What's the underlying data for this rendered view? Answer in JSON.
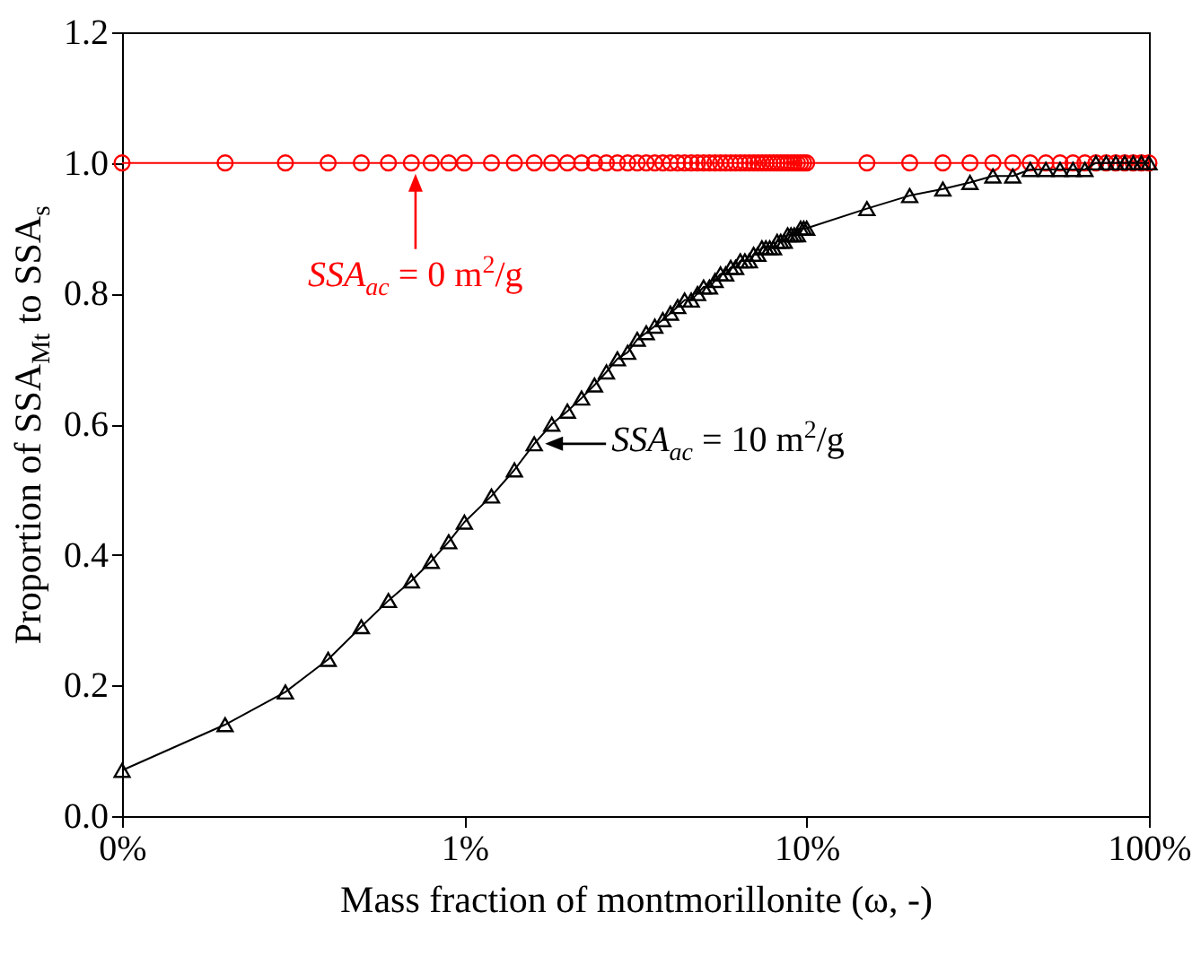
{
  "chart_data": {
    "type": "line",
    "xlabel": "Mass fraction of montmorillonite (ω, -)",
    "ylabel": "Proportion of SSA$_{Mt}$ to SSA$_{s}$",
    "log": "x",
    "xlim": [
      0.1,
      100
    ],
    "xticks": [
      {
        "value": 0.1,
        "label": "0%"
      },
      {
        "value": 1,
        "label": "1%"
      },
      {
        "value": 10,
        "label": "10%"
      },
      {
        "value": 100,
        "label": "100%"
      }
    ],
    "ylim": [
      0,
      1.2
    ],
    "yticks": [
      {
        "value": 0,
        "label": "0.0"
      },
      0.2,
      0.4,
      0.6,
      0.8,
      {
        "value": 1,
        "label": "1.0"
      },
      1.2
    ],
    "grid": false,
    "line_style": "solid",
    "x": [
      0.1,
      0.2,
      0.3,
      0.4,
      0.5,
      0.6,
      0.7,
      0.8,
      0.9,
      1,
      1.2,
      1.4,
      1.6,
      1.8,
      2,
      2.2,
      2.4,
      2.6,
      2.8,
      3,
      3.2,
      3.4,
      3.6,
      3.8,
      4,
      4.2,
      4.4,
      4.6,
      4.8,
      5,
      5.2,
      5.4,
      5.6,
      5.8,
      6,
      6.2,
      6.4,
      6.6,
      6.8,
      7,
      7.2,
      7.4,
      7.6,
      7.8,
      8,
      8.2,
      8.4,
      8.6,
      8.8,
      9,
      9.2,
      9.4,
      9.6,
      9.8,
      10,
      15,
      20,
      25,
      30,
      35,
      40,
      45,
      50,
      55,
      60,
      65,
      70,
      75,
      80,
      85,
      90,
      95,
      100
    ],
    "series": [
      {
        "color": "#ff0000",
        "marker": "circle",
        "values": [
          1,
          1,
          1,
          1,
          1,
          1,
          1,
          1,
          1,
          1,
          1,
          1,
          1,
          1,
          1,
          1,
          1,
          1,
          1,
          1,
          1,
          1,
          1,
          1,
          1,
          1,
          1,
          1,
          1,
          1,
          1,
          1,
          1,
          1,
          1,
          1,
          1,
          1,
          1,
          1,
          1,
          1,
          1,
          1,
          1,
          1,
          1,
          1,
          1,
          1,
          1,
          1,
          1,
          1,
          1,
          1,
          1,
          1,
          1,
          1,
          1,
          1,
          1,
          1,
          1,
          1,
          1,
          1,
          1,
          1,
          1,
          1,
          1
        ]
      },
      {
        "color": "#000000",
        "marker": "triangle",
        "values": [
          0.07,
          0.14,
          0.19,
          0.24,
          0.29,
          0.33,
          0.36,
          0.39,
          0.42,
          0.45,
          0.49,
          0.53,
          0.57,
          0.6,
          0.62,
          0.64,
          0.66,
          0.68,
          0.7,
          0.71,
          0.73,
          0.74,
          0.75,
          0.76,
          0.77,
          0.78,
          0.79,
          0.79,
          0.8,
          0.81,
          0.81,
          0.82,
          0.83,
          0.83,
          0.84,
          0.84,
          0.85,
          0.85,
          0.85,
          0.86,
          0.86,
          0.87,
          0.87,
          0.87,
          0.87,
          0.88,
          0.88,
          0.88,
          0.89,
          0.89,
          0.89,
          0.89,
          0.9,
          0.9,
          0.9,
          0.93,
          0.95,
          0.96,
          0.97,
          0.98,
          0.98,
          0.99,
          0.99,
          0.99,
          0.99,
          0.99,
          1,
          1,
          1,
          1,
          1,
          1,
          1
        ]
      }
    ],
    "annotations": [
      {
        "text": "SSA$_{ac}$ = 0 m$^{2}$/g",
        "x": 0.72,
        "y": 1.0
      },
      {
        "text": "SSA$_{ac}$ = 10 m$^{2}$/g",
        "x": 1.6,
        "y": 0.57
      }
    ]
  }
}
